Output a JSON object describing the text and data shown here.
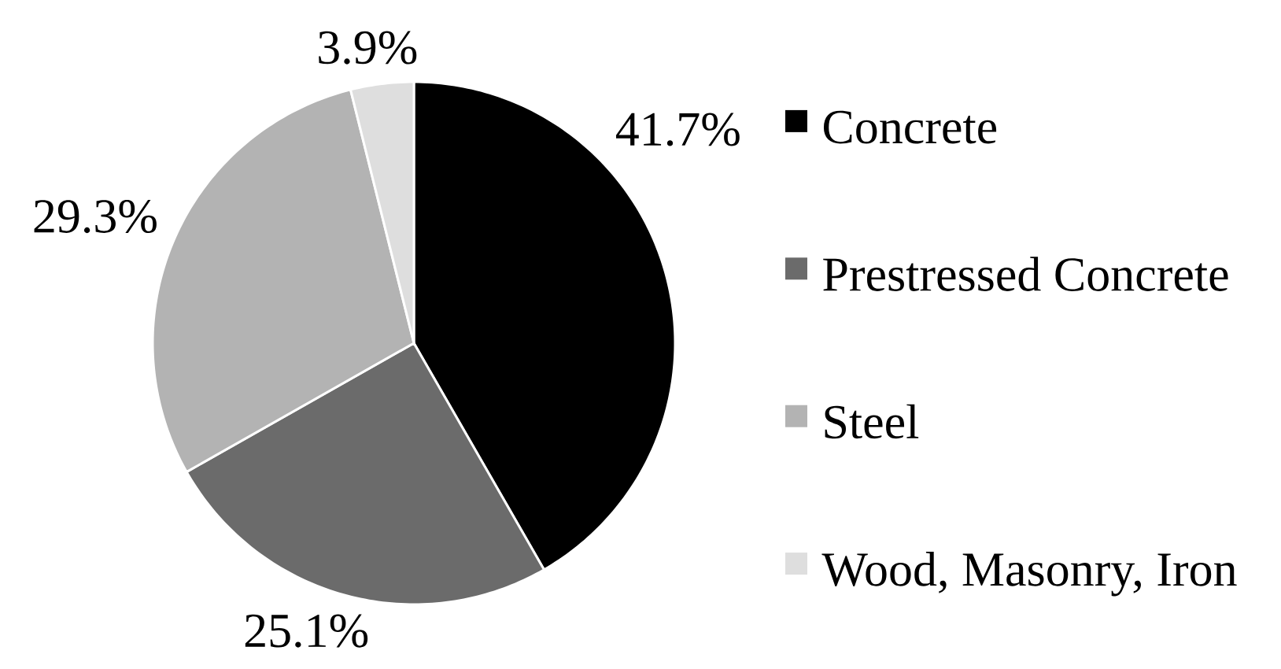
{
  "chart_data": {
    "type": "pie",
    "categories": [
      "Concrete",
      "Prestressed Concrete",
      "Steel",
      "Wood, Masonry, Iron"
    ],
    "values": [
      41.7,
      25.1,
      29.3,
      3.9
    ],
    "colors": [
      "#000000",
      "#6b6b6b",
      "#b3b3b3",
      "#dedede"
    ],
    "value_labels": [
      "41.7%",
      "25.1%",
      "29.3%",
      "3.9%"
    ],
    "legend": "right"
  }
}
